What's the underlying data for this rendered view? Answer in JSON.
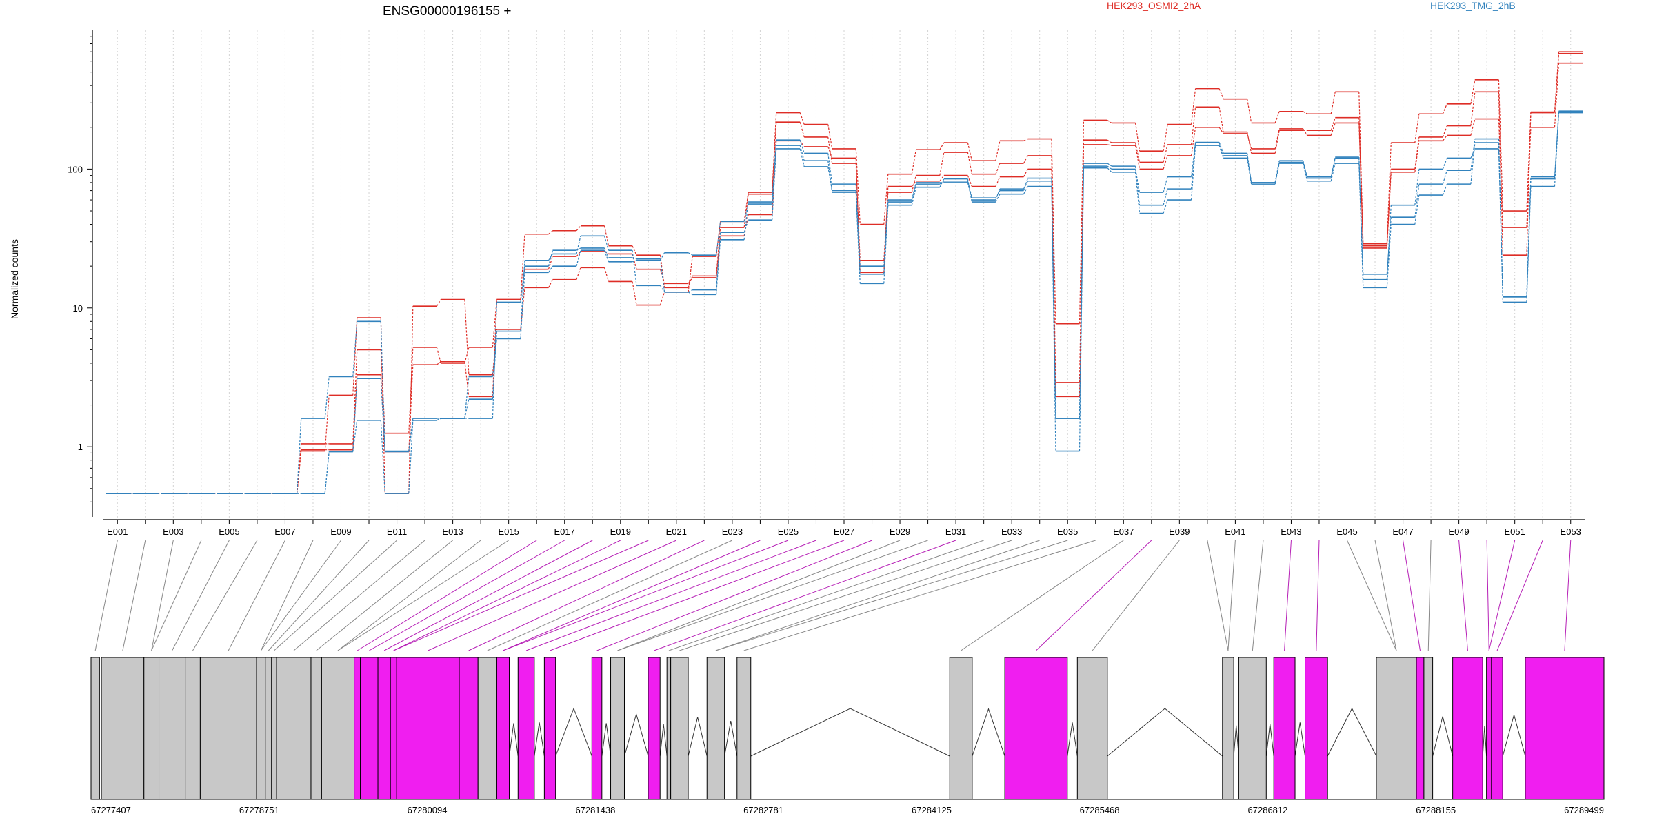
{
  "chart_data": {
    "type": "line",
    "title": "ENSG00000196155 +",
    "ylabel": "Normalized counts",
    "yscale": "log",
    "ylim": [
      0.35,
      1000
    ],
    "yticks": [
      "1",
      "10",
      "100"
    ],
    "ytick_values": [
      1,
      10,
      100
    ],
    "grid": "vertical dotted at exon centers",
    "legend_placement": "top",
    "colors": {
      "osmi": "#de2d26",
      "tmg": "#3182bd",
      "exon_constitutive": "#f01ef0",
      "exon_other": "#c8c8c8",
      "intron": "#000000"
    },
    "exon_labels": [
      "E001",
      "E003",
      "E005",
      "E007",
      "E009",
      "E011",
      "E013",
      "E015",
      "E017",
      "E019",
      "E021",
      "E023",
      "E025",
      "E027",
      "E029",
      "E031",
      "E033",
      "E035",
      "E037",
      "E039",
      "E041",
      "E043",
      "E045",
      "E047",
      "E049",
      "E051",
      "E053"
    ],
    "genomic_ticks": [
      "67277407",
      "67278751",
      "67280094",
      "67281438",
      "67282781",
      "67284125",
      "67285468",
      "67286812",
      "67288155",
      "67289499"
    ],
    "genomic_range": [
      67277407,
      67289499
    ],
    "legend": [
      {
        "name": "HEK293_OSMI2_2hA",
        "color": "#de2d26"
      },
      {
        "name": "HEK293_TMG_2hB",
        "color": "#3182bd"
      }
    ],
    "series": [
      {
        "name": "HEK293_OSMI2_2hA",
        "group": "osmi",
        "values": [
          0.46,
          0.46,
          0.46,
          0.46,
          0.46,
          0.46,
          0.46,
          1.05,
          1.05,
          5.0,
          1.25,
          5.2,
          4.0,
          5.2,
          11.5,
          19.0,
          23.5,
          25.5,
          24.5,
          19.0,
          15.0,
          16.5,
          33.0,
          47.0,
          160,
          145,
          120,
          18,
          75,
          82,
          90,
          75,
          88,
          100,
          2.3,
          150,
          148,
          100,
          125,
          200,
          180,
          140,
          195,
          175,
          215,
          27,
          95,
          160,
          175,
          230,
          38,
          200,
          580
        ]
      },
      {
        "name": "HEK293_OSMI2_2hA",
        "group": "osmi",
        "values": [
          0.46,
          0.46,
          0.46,
          0.46,
          0.46,
          0.46,
          0.46,
          0.93,
          2.35,
          8.5,
          0.46,
          10.3,
          11.5,
          3.3,
          7.0,
          14.0,
          16.0,
          19.5,
          15.5,
          10.5,
          13.0,
          23.5,
          42.0,
          68.0,
          255,
          210,
          140,
          40,
          92,
          138,
          155,
          115,
          160,
          165,
          7.7,
          225,
          215,
          135,
          210,
          380,
          320,
          215,
          260,
          250,
          360,
          29,
          155,
          250,
          295,
          440,
          50,
          255,
          700
        ]
      },
      {
        "name": "HEK293_OSMI2_2hA",
        "group": "osmi",
        "values": [
          0.46,
          0.46,
          0.46,
          0.46,
          0.46,
          0.46,
          0.46,
          0.95,
          0.95,
          3.3,
          0.92,
          3.9,
          4.1,
          2.3,
          11.5,
          34.0,
          36.0,
          39.0,
          28.0,
          24.0,
          14.0,
          17.0,
          38.0,
          66.0,
          218,
          170,
          110,
          22,
          68,
          90,
          132,
          92,
          110,
          125,
          2.9,
          162,
          155,
          112,
          150,
          280,
          185,
          130,
          190,
          190,
          235,
          28,
          100,
          170,
          205,
          360,
          24,
          258,
          680
        ]
      },
      {
        "name": "HEK293_TMG_2hB",
        "group": "tmg",
        "values": [
          0.46,
          0.46,
          0.46,
          0.46,
          0.46,
          0.46,
          0.46,
          1.6,
          3.2,
          8.0,
          0.93,
          1.6,
          1.6,
          3.2,
          6.0,
          18.0,
          20.0,
          26.0,
          21.5,
          22.0,
          25.0,
          24.0,
          42.0,
          56.0,
          148,
          115,
          68,
          15,
          55,
          74,
          85,
          58,
          66,
          75,
          0.93,
          102,
          95,
          48,
          60,
          148,
          120,
          78,
          110,
          82,
          110,
          14,
          40,
          65,
          78,
          155,
          11,
          75,
          255
        ]
      },
      {
        "name": "HEK293_TMG_2hB",
        "group": "tmg",
        "values": [
          0.46,
          0.46,
          0.46,
          0.46,
          0.46,
          0.46,
          0.46,
          0.46,
          0.92,
          1.55,
          0.46,
          1.55,
          1.6,
          2.2,
          6.8,
          22.0,
          24.5,
          33.0,
          26.0,
          14.5,
          13.0,
          13.5,
          35.0,
          43.0,
          140,
          104,
          70,
          17.5,
          58,
          78,
          82,
          62,
          70,
          86,
          1.6,
          110,
          105,
          55,
          72,
          156,
          130,
          80,
          115,
          86,
          120,
          17.5,
          45,
          78,
          98,
          165,
          12,
          85,
          258
        ]
      },
      {
        "name": "HEK293_TMG_2hB",
        "group": "tmg",
        "values": [
          0.46,
          0.46,
          0.46,
          0.46,
          0.46,
          0.46,
          0.46,
          0.46,
          0.92,
          3.1,
          0.92,
          1.55,
          1.6,
          1.6,
          11.0,
          20.0,
          26.0,
          27.0,
          23.0,
          22.5,
          13.0,
          12.5,
          31.0,
          58.0,
          162,
          130,
          78,
          20,
          60,
          80,
          80,
          60,
          72,
          82,
          1.6,
          105,
          100,
          68,
          88,
          155,
          125,
          80,
          112,
          88,
          122,
          16,
          55,
          100,
          120,
          140,
          12,
          88,
          262
        ]
      }
    ],
    "exon_blocks": [
      {
        "start": 67277407,
        "end": 67277475,
        "kind": "other"
      },
      {
        "start": 67277490,
        "end": 67277830,
        "kind": "other"
      },
      {
        "start": 67277830,
        "end": 67277950,
        "kind": "other"
      },
      {
        "start": 67277950,
        "end": 67278160,
        "kind": "other"
      },
      {
        "start": 67278160,
        "end": 67278280,
        "kind": "other"
      },
      {
        "start": 67278280,
        "end": 67278730,
        "kind": "other"
      },
      {
        "start": 67278730,
        "end": 67278800,
        "kind": "other"
      },
      {
        "start": 67278800,
        "end": 67278850,
        "kind": "other"
      },
      {
        "start": 67278850,
        "end": 67278890,
        "kind": "other"
      },
      {
        "start": 67278890,
        "end": 67279165,
        "kind": "other"
      },
      {
        "start": 67279165,
        "end": 67279250,
        "kind": "other"
      },
      {
        "start": 67279250,
        "end": 67279510,
        "kind": "other"
      },
      {
        "start": 67279510,
        "end": 67279560,
        "kind": "constitutive"
      },
      {
        "start": 67279560,
        "end": 67279700,
        "kind": "constitutive"
      },
      {
        "start": 67279700,
        "end": 67279800,
        "kind": "constitutive"
      },
      {
        "start": 67279800,
        "end": 67279850,
        "kind": "constitutive"
      },
      {
        "start": 67279850,
        "end": 67280350,
        "kind": "constitutive"
      },
      {
        "start": 67280350,
        "end": 67280500,
        "kind": "constitutive"
      },
      {
        "start": 67280500,
        "end": 67280650,
        "kind": "other"
      },
      {
        "start": 67280650,
        "end": 67280750,
        "kind": "constitutive"
      },
      {
        "start": 67280820,
        "end": 67280950,
        "kind": "constitutive"
      },
      {
        "start": 67281030,
        "end": 67281120,
        "kind": "constitutive"
      },
      {
        "start": 67281410,
        "end": 67281490,
        "kind": "constitutive"
      },
      {
        "start": 67281560,
        "end": 67281670,
        "kind": "other"
      },
      {
        "start": 67281860,
        "end": 67281955,
        "kind": "constitutive"
      },
      {
        "start": 67282010,
        "end": 67282040,
        "kind": "other"
      },
      {
        "start": 67282040,
        "end": 67282180,
        "kind": "other"
      },
      {
        "start": 67282330,
        "end": 67282470,
        "kind": "other"
      },
      {
        "start": 67282570,
        "end": 67282680,
        "kind": "other"
      },
      {
        "start": 67284270,
        "end": 67284450,
        "kind": "other"
      },
      {
        "start": 67284710,
        "end": 67285210,
        "kind": "constitutive"
      },
      {
        "start": 67285290,
        "end": 67285530,
        "kind": "other"
      },
      {
        "start": 67286450,
        "end": 67286540,
        "kind": "other"
      },
      {
        "start": 67286580,
        "end": 67286800,
        "kind": "other"
      },
      {
        "start": 67286860,
        "end": 67287030,
        "kind": "constitutive"
      },
      {
        "start": 67287110,
        "end": 67287290,
        "kind": "constitutive"
      },
      {
        "start": 67287680,
        "end": 67288000,
        "kind": "other"
      },
      {
        "start": 67288000,
        "end": 67288060,
        "kind": "constitutive"
      },
      {
        "start": 67288060,
        "end": 67288130,
        "kind": "other"
      },
      {
        "start": 67288290,
        "end": 67288530,
        "kind": "constitutive"
      },
      {
        "start": 67288560,
        "end": 67288600,
        "kind": "constitutive"
      },
      {
        "start": 67288600,
        "end": 67288690,
        "kind": "constitutive"
      },
      {
        "start": 67288870,
        "end": 67289499,
        "kind": "constitutive"
      }
    ]
  }
}
